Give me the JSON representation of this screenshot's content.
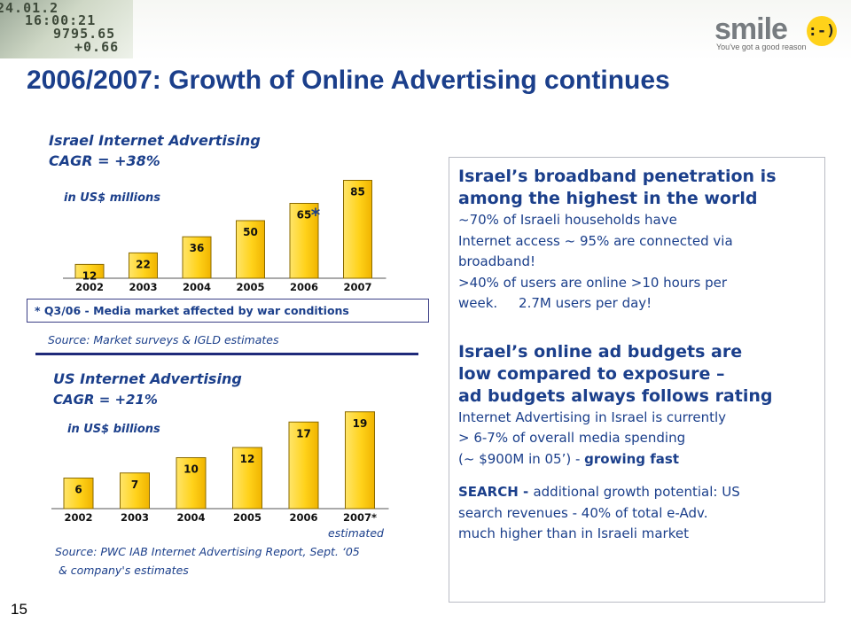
{
  "header": {
    "ticker_lines": [
      "24.01.2",
      "16:00:21",
      "9795.65",
      "+0.66"
    ],
    "logo_word": "smile",
    "logo_face": ":-)",
    "logo_tagline": "You've got a good reason",
    "title": "2006/2007: Growth of Online Advertising continues"
  },
  "israel": {
    "title": "Israel Internet Advertising",
    "cagr": "CAGR = +38%",
    "unit": "in US$ millions",
    "note": "*  Q3/06 - Media market affected by war conditions",
    "source": "Source: Market surveys & IGLD estimates"
  },
  "us": {
    "title": "US Internet Advertising",
    "cagr": "CAGR = +21%",
    "unit": "in US$ billions",
    "estimated": "estimated",
    "source_line1": "Source: PWC IAB Internet Advertising Report, Sept. ‘05",
    "source_line2": "& company's estimates"
  },
  "chart_data": [
    {
      "type": "bar",
      "title": "Israel Internet Advertising",
      "categories": [
        "2002",
        "2003",
        "2004",
        "2005",
        "2006",
        "2007"
      ],
      "values": [
        12,
        22,
        36,
        50,
        65,
        85
      ],
      "value_labels": [
        "12",
        "22",
        "36",
        "50",
        "65",
        "85"
      ],
      "annotations": [
        {
          "category": "2006",
          "text": "*"
        }
      ],
      "ylim": [
        0,
        90
      ],
      "grid": false,
      "bar_color": "#ffd21a"
    },
    {
      "type": "bar",
      "title": "US Internet Advertising",
      "categories": [
        "2002",
        "2003",
        "2004",
        "2005",
        "2006",
        "2007*"
      ],
      "values": [
        6,
        7,
        10,
        12,
        17,
        19
      ],
      "value_labels": [
        "6",
        "7",
        "10",
        "12",
        "17",
        "19"
      ],
      "ylim": [
        0,
        20
      ],
      "grid": false,
      "bar_color": "#ffd21a"
    }
  ],
  "panel": {
    "h1_line1": "Israel’s broadband penetration is",
    "h1_line2": "among the highest in the world",
    "t1_line1": "~70% of Israeli households have",
    "t1_line2": "Internet access ~ 95% are connected via",
    "t1_line3": "broadband!",
    "t1_line4": ">40% of users are online >10 hours per",
    "t1_line5": "week.     2.7M users per day!",
    "h2_line1": "Israel’s online ad budgets are",
    "h2_line2": "low compared to exposure –",
    "h2_line3": "ad budgets always follows rating",
    "t2_line1": "Internet Advertising in Israel is currently",
    "t2_line2": "> 6-7% of overall media spending",
    "t2_line3_a": "(~ $900M in 05’) - ",
    "t2_line3_b": "growing fast",
    "t3_line1_a": "SEARCH - ",
    "t3_line1_b": "additional growth potential: US",
    "t3_line2": "search revenues - 40% of total e-Adv.",
    "t3_line3": "much higher than in Israeli market"
  },
  "page_number": "15"
}
